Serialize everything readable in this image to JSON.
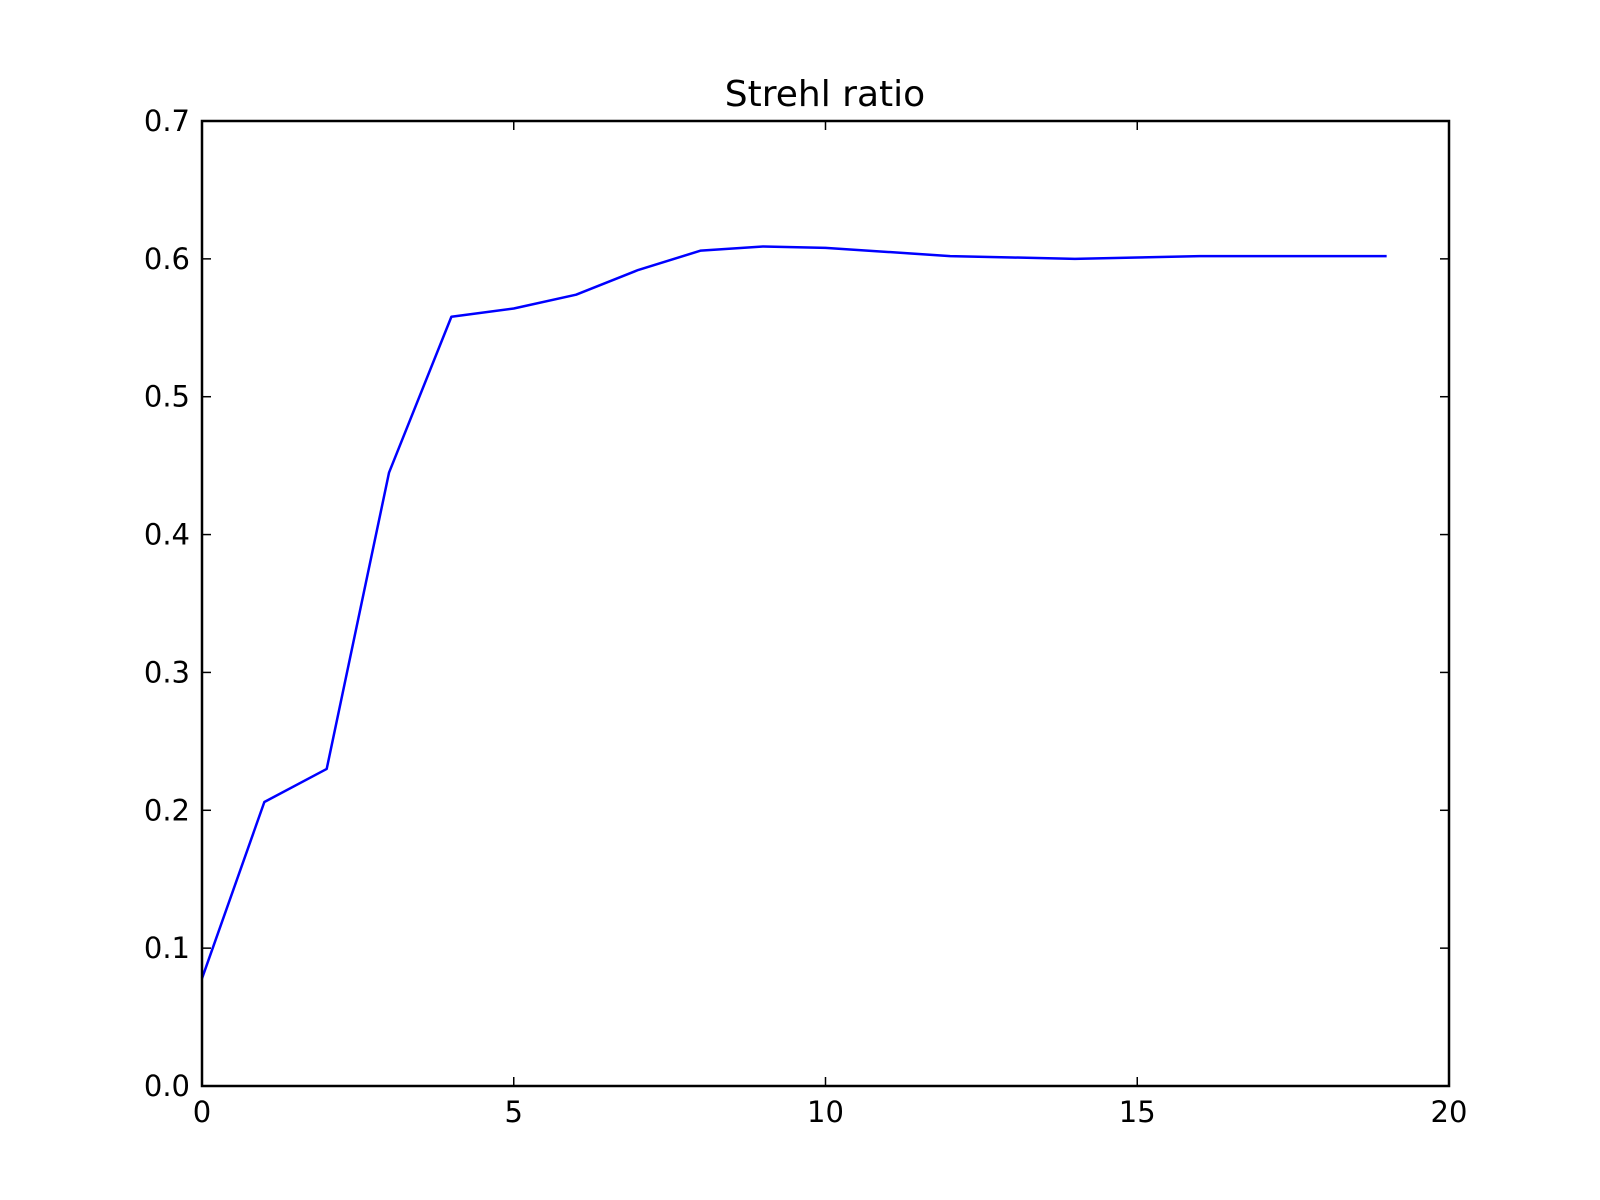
{
  "chart_data": {
    "type": "line",
    "title": "Strehl ratio",
    "xlabel": "",
    "ylabel": "",
    "xlim": [
      0,
      20
    ],
    "ylim": [
      0.0,
      0.7
    ],
    "x_ticks": [
      0,
      5,
      10,
      15,
      20
    ],
    "x_tick_labels": [
      "0",
      "5",
      "10",
      "15",
      "20"
    ],
    "y_ticks": [
      0.0,
      0.1,
      0.2,
      0.3,
      0.4,
      0.5,
      0.6,
      0.7
    ],
    "y_tick_labels": [
      "0.0",
      "0.1",
      "0.2",
      "0.3",
      "0.4",
      "0.5",
      "0.6",
      "0.7"
    ],
    "grid": false,
    "legend": "none",
    "series": [
      {
        "color": "#0000ff",
        "x": [
          0,
          1,
          2,
          3,
          4,
          5,
          6,
          7,
          8,
          9,
          10,
          11,
          12,
          13,
          14,
          15,
          16,
          17,
          18,
          19
        ],
        "y": [
          0.078,
          0.206,
          0.23,
          0.445,
          0.558,
          0.564,
          0.574,
          0.592,
          0.606,
          0.609,
          0.608,
          0.605,
          0.602,
          0.601,
          0.6,
          0.601,
          0.602,
          0.602,
          0.602,
          0.602
        ]
      }
    ]
  }
}
